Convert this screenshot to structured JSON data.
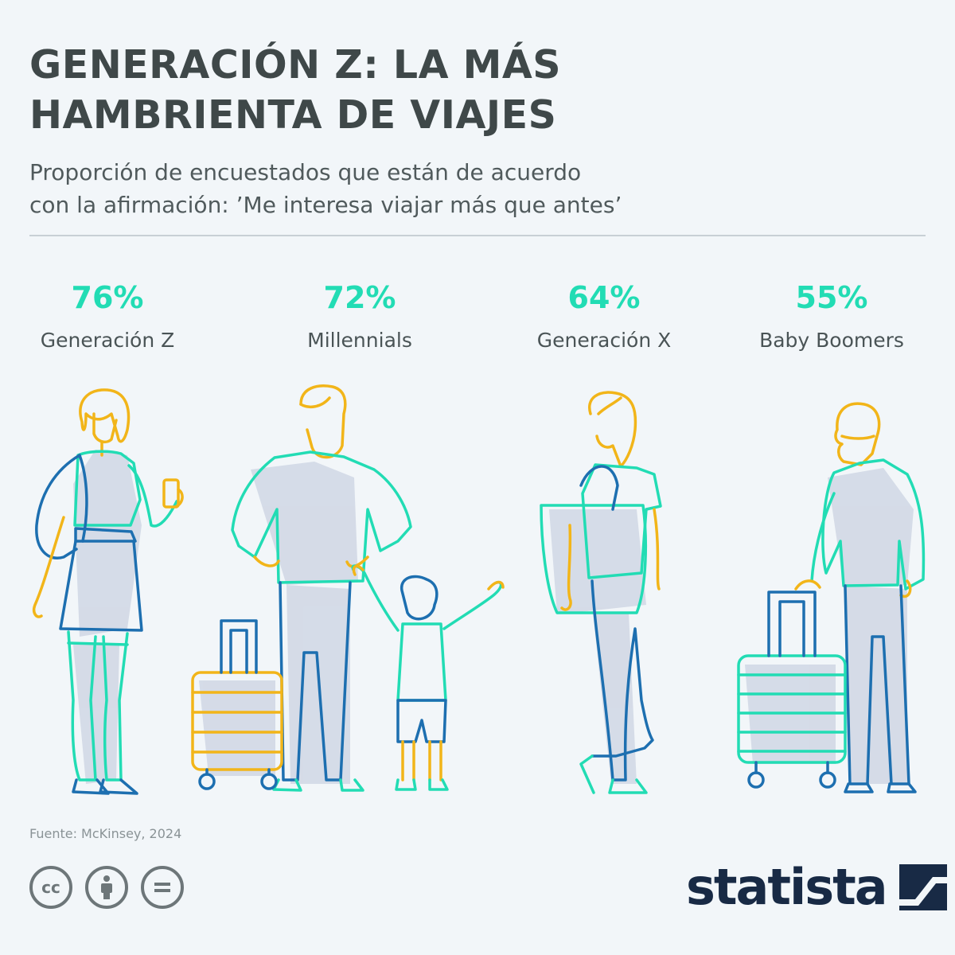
{
  "header": {
    "title_line1": "GENERACIÓN Z: LA MÁS",
    "title_line2": "HAMBRIENTA DE VIAJES",
    "subtitle_line1": "Proporción de encuestados que están de acuerdo",
    "subtitle_line2": "con la afirmación: ’Me interesa viajar más que antes’"
  },
  "chart_data": {
    "type": "bar",
    "categories": [
      "Generación Z",
      "Millennials",
      "Generación X",
      "Baby Boomers"
    ],
    "values": [
      76,
      72,
      64,
      55
    ],
    "value_labels": [
      "76%",
      "72%",
      "64%",
      "55%"
    ],
    "unit": "%"
  },
  "footer": {
    "source": "Fuente: McKinsey, 2024",
    "brand": "statista",
    "license_icons": [
      "cc-icon",
      "attribution-icon",
      "no-derivatives-icon"
    ]
  },
  "colors": {
    "accent": "#22dcb4",
    "yellow": "#f2b519",
    "blue": "#1d6fb0",
    "shadow": "#d2d9e6",
    "title": "#3f4849",
    "brand": "#182a45"
  }
}
